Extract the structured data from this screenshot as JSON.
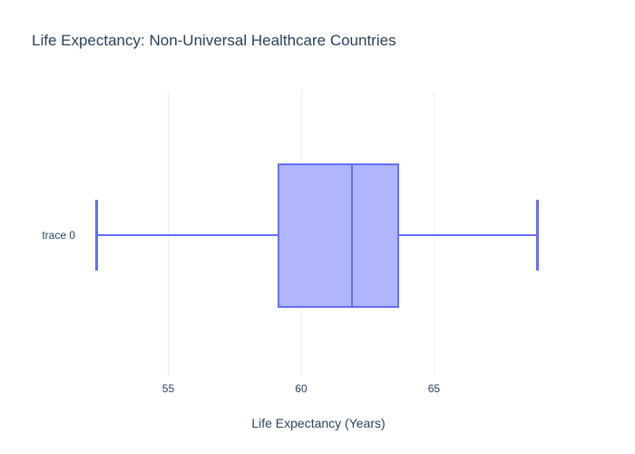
{
  "title": {
    "text": "Life Expectancy: Non-Universal Healthcare Countries"
  },
  "y_axis": {
    "trace_label": "trace 0"
  },
  "x_axis": {
    "title": "Life Expectancy (Years)"
  },
  "chart_data": {
    "type": "box",
    "orientation": "horizontal",
    "title": "Life Expectancy: Non-Universal Healthcare Countries",
    "xlabel": "Life Expectancy (Years)",
    "ylabel": "",
    "categories": [
      "trace 0"
    ],
    "series": [
      {
        "name": "trace 0",
        "min": 52.3,
        "q1": 59.1,
        "median": 61.9,
        "q3": 63.7,
        "max": 68.9,
        "outliers": []
      }
    ],
    "x_ticks": [
      55,
      60,
      65
    ],
    "xlim": [
      51.4,
      69.9
    ],
    "grid": true,
    "legend_position": "none",
    "colors": {
      "box_line": "#636efa",
      "box_fill": "rgba(99,110,250,0.5)",
      "grid_color": "#ebf0f8",
      "text_color": "#2a3f5f",
      "paper_bg": "#ffffff",
      "plot_bg": "#ffffff"
    }
  }
}
